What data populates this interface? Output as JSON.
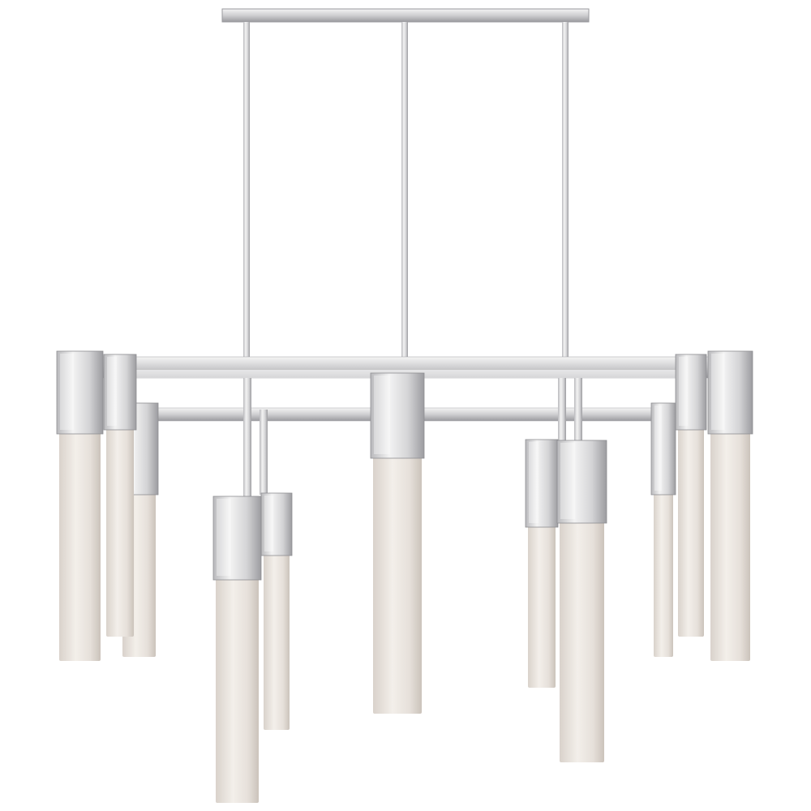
{
  "colors": {
    "background": "#ffffff",
    "chrome_light": "#f2f2f2",
    "chrome_mid": "#c9c9cb",
    "chrome_dark": "#8e8e92",
    "alabaster_light": "#f1ede8",
    "alabaster_mid": "#ddd6cf",
    "alabaster_dark": "#c9c1b9"
  }
}
